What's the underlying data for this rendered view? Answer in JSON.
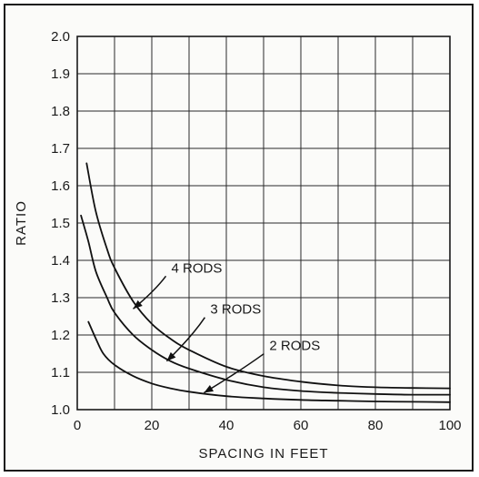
{
  "chart_data": {
    "type": "line",
    "title": "",
    "xlabel": "SPACING IN FEET",
    "ylabel": "RATIO",
    "xlim": [
      0,
      100
    ],
    "ylim": [
      1.0,
      2.0
    ],
    "x_ticks": [
      "0",
      "20",
      "40",
      "60",
      "80",
      "100"
    ],
    "y_ticks": [
      "1.0",
      "1.1",
      "1.2",
      "1.3",
      "1.4",
      "1.5",
      "1.6",
      "1.7",
      "1.8",
      "1.9",
      "2.0"
    ],
    "grid": true,
    "series": [
      {
        "name": "4 RODS",
        "x": [
          2.5,
          5,
          8,
          10,
          15,
          20,
          25,
          30,
          40,
          50,
          60,
          70,
          80,
          90,
          100
        ],
        "y": [
          1.66,
          1.53,
          1.43,
          1.38,
          1.29,
          1.23,
          1.19,
          1.16,
          1.115,
          1.09,
          1.075,
          1.065,
          1.06,
          1.058,
          1.057
        ]
      },
      {
        "name": "3 RODS",
        "x": [
          1,
          3,
          5,
          8,
          10,
          15,
          20,
          25,
          30,
          40,
          50,
          60,
          70,
          80,
          90,
          100
        ],
        "y": [
          1.52,
          1.45,
          1.37,
          1.3,
          1.26,
          1.2,
          1.16,
          1.13,
          1.11,
          1.08,
          1.06,
          1.05,
          1.045,
          1.042,
          1.04,
          1.04
        ]
      },
      {
        "name": "2 RODS",
        "x": [
          3,
          5,
          7,
          10,
          15,
          20,
          25,
          30,
          40,
          50,
          60,
          70,
          80,
          90,
          100
        ],
        "y": [
          1.235,
          1.19,
          1.15,
          1.12,
          1.09,
          1.07,
          1.057,
          1.048,
          1.036,
          1.03,
          1.026,
          1.024,
          1.022,
          1.021,
          1.02
        ]
      }
    ],
    "annotations": [
      {
        "text": "4 RODS",
        "series": "4 RODS",
        "point": [
          15,
          1.27
        ]
      },
      {
        "text": "3 RODS",
        "series": "3 RODS",
        "point": [
          24,
          1.13
        ]
      },
      {
        "text": "2 RODS",
        "series": "2 RODS",
        "point": [
          34,
          1.045
        ]
      }
    ]
  }
}
